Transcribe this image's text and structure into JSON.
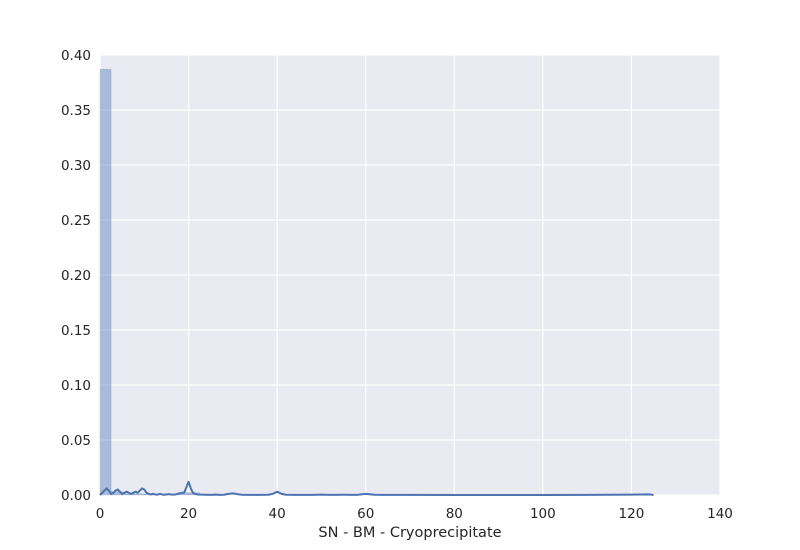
{
  "chart_data": {
    "type": "histogram",
    "title": "",
    "xlabel": "SN - BM - Cryoprecipitate",
    "ylabel": "",
    "xlim": [
      0,
      140
    ],
    "ylim": [
      0,
      0.4
    ],
    "x_ticks": [
      0,
      20,
      40,
      60,
      80,
      100,
      120,
      140
    ],
    "x_tick_labels": [
      "0",
      "20",
      "40",
      "60",
      "80",
      "100",
      "120",
      "140"
    ],
    "y_ticks": [
      0,
      0.05,
      0.1,
      0.15,
      0.2,
      0.25,
      0.3,
      0.35,
      0.4
    ],
    "y_tick_labels": [
      "0.00",
      "0.05",
      "0.10",
      "0.15",
      "0.20",
      "0.25",
      "0.30",
      "0.35",
      "0.40"
    ],
    "grid": true,
    "background_color": "#eaeaf2",
    "bar_color": "#4c72b0",
    "line_color": "#4c72b0",
    "histogram": {
      "bins": [
        {
          "start": 0,
          "end": 2.5,
          "density": 0.387
        },
        {
          "start": 2.5,
          "end": 5,
          "density": 0.003
        },
        {
          "start": 5,
          "end": 7.5,
          "density": 0.001
        },
        {
          "start": 7.5,
          "end": 10,
          "density": 0.001
        },
        {
          "start": 10,
          "end": 12.5,
          "density": 0.0005
        },
        {
          "start": 17.5,
          "end": 20,
          "density": 0.002
        },
        {
          "start": 20,
          "end": 22.5,
          "density": 0.002
        }
      ]
    },
    "kde": {
      "x": [
        0,
        0.5,
        1,
        1.5,
        2,
        2.5,
        3,
        3.5,
        4,
        4.5,
        5,
        5.5,
        6,
        6.5,
        7,
        7.5,
        8,
        8.5,
        9,
        9.5,
        10,
        10.5,
        11,
        11.5,
        12,
        12.5,
        13,
        13.5,
        14,
        14.5,
        15,
        15.5,
        16,
        16.5,
        17,
        17.5,
        18,
        18.5,
        19,
        19.5,
        20,
        20.5,
        21,
        21.5,
        22,
        23,
        24,
        25,
        26,
        27,
        28,
        29,
        30,
        31,
        32,
        34,
        36,
        38,
        39,
        40,
        41,
        42,
        44,
        46,
        48,
        50,
        52,
        55,
        58,
        60,
        62,
        65,
        70,
        80,
        90,
        100,
        110,
        115,
        120,
        122,
        124,
        125
      ],
      "y": [
        0.0,
        0.002,
        0.004,
        0.006,
        0.004,
        0.001,
        0.002,
        0.004,
        0.005,
        0.003,
        0.001,
        0.002,
        0.003,
        0.002,
        0.001,
        0.002,
        0.003,
        0.002,
        0.004,
        0.006,
        0.005,
        0.002,
        0.001,
        0.0005,
        0.001,
        0.0005,
        0.0003,
        0.001,
        0.0005,
        0.0002,
        0.0005,
        0.0008,
        0.0005,
        0.0003,
        0.0005,
        0.001,
        0.0015,
        0.002,
        0.002,
        0.007,
        0.012,
        0.006,
        0.002,
        0.001,
        0.0005,
        0.0003,
        0.0002,
        0.0001,
        0.0003,
        0.0001,
        0.0002,
        0.001,
        0.0015,
        0.0008,
        0.0002,
        0.0001,
        0.0001,
        0.0002,
        0.001,
        0.003,
        0.001,
        0.0002,
        0.0001,
        0.0001,
        0.0001,
        0.0003,
        0.0001,
        0.0002,
        0.0001,
        0.001,
        0.0002,
        0.0001,
        0.0001,
        0.0,
        0.0,
        0.0,
        0.0001,
        0.0002,
        0.0003,
        0.0005,
        0.0006,
        0.0
      ]
    }
  }
}
